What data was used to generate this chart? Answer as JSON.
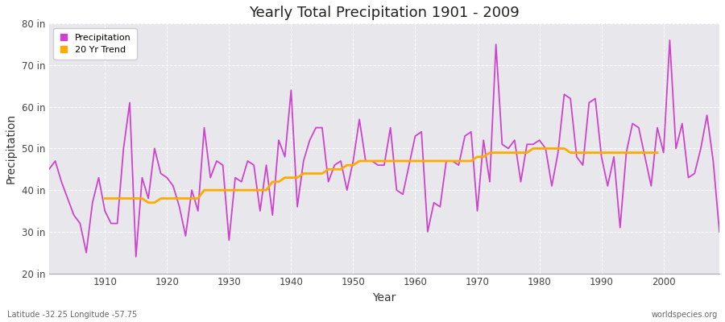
{
  "title": "Yearly Total Precipitation 1901 - 2009",
  "xlabel": "Year",
  "ylabel": "Precipitation",
  "xlim": [
    1901,
    2009
  ],
  "ylim": [
    20,
    80
  ],
  "yticks": [
    20,
    30,
    40,
    50,
    60,
    70,
    80
  ],
  "ytick_labels": [
    "20 in",
    "30 in",
    "40 in",
    "50 in",
    "60 in",
    "70 in",
    "80 in"
  ],
  "xticks": [
    1910,
    1920,
    1930,
    1940,
    1950,
    1960,
    1970,
    1980,
    1990,
    2000
  ],
  "fig_bg_color": "#ffffff",
  "plot_bg_color": "#e8e8ec",
  "grid_color": "#ffffff",
  "grid_linestyle": "--",
  "precip_color": "#cc44cc",
  "trend_color": "#ffaa00",
  "precip_label": "Precipitation",
  "trend_label": "20 Yr Trend",
  "footer_left": "Latitude -32.25 Longitude -57.75",
  "footer_right": "worldspecies.org",
  "years": [
    1901,
    1902,
    1903,
    1904,
    1905,
    1906,
    1907,
    1908,
    1909,
    1910,
    1911,
    1912,
    1913,
    1914,
    1915,
    1916,
    1917,
    1918,
    1919,
    1920,
    1921,
    1922,
    1923,
    1924,
    1925,
    1926,
    1927,
    1928,
    1929,
    1930,
    1931,
    1932,
    1933,
    1934,
    1935,
    1936,
    1937,
    1938,
    1939,
    1940,
    1941,
    1942,
    1943,
    1944,
    1945,
    1946,
    1947,
    1948,
    1949,
    1950,
    1951,
    1952,
    1953,
    1954,
    1955,
    1956,
    1957,
    1958,
    1959,
    1960,
    1961,
    1962,
    1963,
    1964,
    1965,
    1966,
    1967,
    1968,
    1969,
    1970,
    1971,
    1972,
    1973,
    1974,
    1975,
    1976,
    1977,
    1978,
    1979,
    1980,
    1981,
    1982,
    1983,
    1984,
    1985,
    1986,
    1987,
    1988,
    1989,
    1990,
    1991,
    1992,
    1993,
    1994,
    1995,
    1996,
    1997,
    1998,
    1999,
    2000,
    2001,
    2002,
    2003,
    2004,
    2005,
    2006,
    2007,
    2008,
    2009
  ],
  "precip": [
    45,
    47,
    42,
    38,
    34,
    32,
    25,
    37,
    43,
    35,
    32,
    32,
    50,
    61,
    24,
    43,
    38,
    50,
    44,
    43,
    41,
    36,
    29,
    40,
    35,
    55,
    43,
    47,
    46,
    28,
    43,
    42,
    47,
    46,
    35,
    46,
    34,
    52,
    48,
    64,
    36,
    47,
    52,
    55,
    55,
    42,
    46,
    47,
    40,
    47,
    57,
    47,
    47,
    46,
    46,
    55,
    40,
    39,
    46,
    53,
    54,
    30,
    37,
    36,
    47,
    47,
    46,
    53,
    54,
    35,
    52,
    42,
    75,
    51,
    50,
    52,
    42,
    51,
    51,
    52,
    50,
    41,
    49,
    63,
    62,
    48,
    46,
    61,
    62,
    48,
    41,
    48,
    31,
    49,
    56,
    55,
    48,
    41,
    55,
    49,
    76,
    50,
    56,
    43,
    44,
    50,
    58,
    47,
    30
  ],
  "trend": [
    null,
    null,
    null,
    null,
    null,
    null,
    null,
    null,
    null,
    38,
    38,
    38,
    38,
    38,
    38,
    38,
    37,
    37,
    38,
    38,
    38,
    38,
    38,
    38,
    38,
    40,
    40,
    40,
    40,
    40,
    40,
    40,
    40,
    40,
    40,
    40,
    42,
    42,
    43,
    43,
    43,
    44,
    44,
    44,
    44,
    45,
    45,
    45,
    46,
    46,
    47,
    47,
    47,
    47,
    47,
    47,
    47,
    47,
    47,
    47,
    47,
    47,
    47,
    47,
    47,
    47,
    47,
    47,
    47,
    48,
    48,
    49,
    49,
    49,
    49,
    49,
    49,
    49,
    50,
    50,
    50,
    50,
    50,
    50,
    49,
    49,
    49,
    49,
    49,
    49,
    49,
    49,
    49,
    49,
    49,
    49,
    49,
    49,
    49,
    null,
    null,
    null,
    null,
    null,
    null,
    null,
    null,
    null,
    null
  ]
}
